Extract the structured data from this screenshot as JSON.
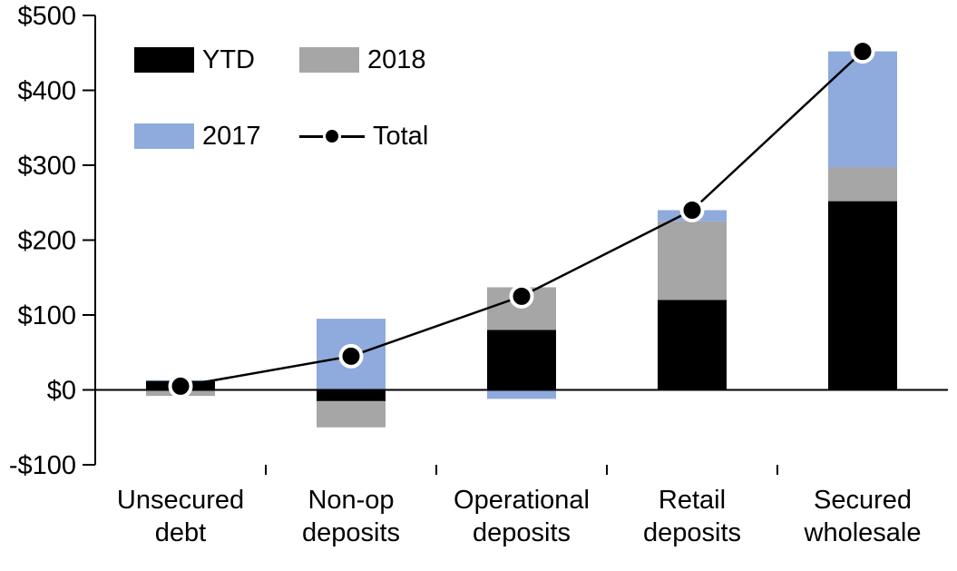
{
  "chart_data": {
    "type": "bar",
    "subtype": "stacked-bars-with-total-line",
    "title": "",
    "categories": [
      "Unsecured debt",
      "Non-op deposits",
      "Operational deposits",
      "Retail deposits",
      "Secured wholesale"
    ],
    "bar_series": [
      {
        "name": "YTD",
        "color": "#000000",
        "values": [
          12,
          -15,
          80,
          120,
          252
        ]
      },
      {
        "name": "2018",
        "color": "#a6a6a6",
        "values": [
          -8,
          -35,
          57,
          105,
          45
        ]
      },
      {
        "name": "2017",
        "color": "#8faadc",
        "values": [
          1,
          95,
          -12,
          15,
          155
        ]
      }
    ],
    "line_series": {
      "name": "Total",
      "color": "#000000",
      "marker_fill": "#000000",
      "marker_ring": "#ffffff",
      "values": [
        5,
        45,
        125,
        240,
        452
      ]
    },
    "ylim": [
      -100,
      500
    ],
    "yticks": [
      -100,
      0,
      100,
      200,
      300,
      400,
      500
    ],
    "ytick_labels": [
      "-$100",
      "$0",
      "$100",
      "$200",
      "$300",
      "$400",
      "$500"
    ],
    "grid": false,
    "axis_color": "#000000",
    "legend": {
      "position": "top-left-inside",
      "items": [
        "YTD",
        "2018",
        "2017",
        "Total"
      ]
    }
  }
}
